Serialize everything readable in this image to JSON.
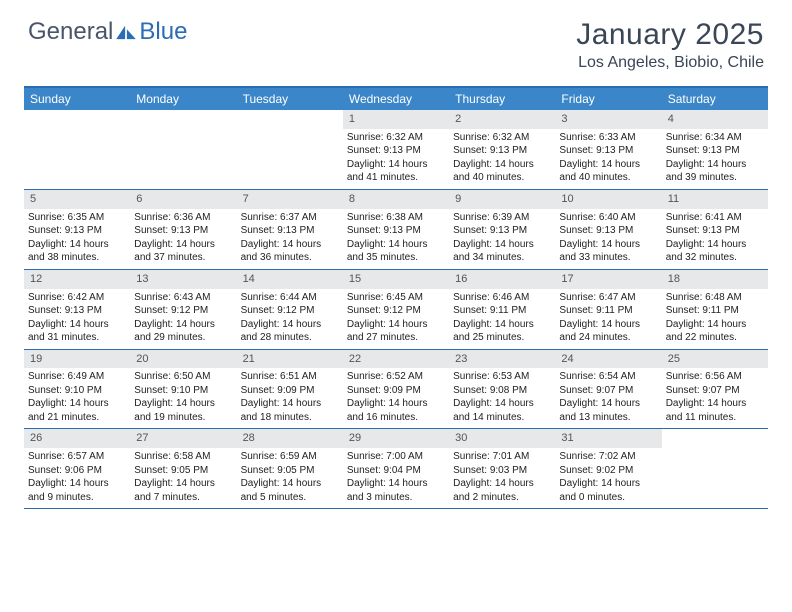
{
  "logo": {
    "part1": "General",
    "part2": "Blue"
  },
  "title": "January 2025",
  "location": "Los Angeles, Biobio, Chile",
  "colors": {
    "header_bar": "#3b86c8",
    "border": "#2a6db5",
    "daynum_bg": "#e6e8ea",
    "title_color": "#3a4556",
    "logo_gray": "#4a5568"
  },
  "day_names": [
    "Sunday",
    "Monday",
    "Tuesday",
    "Wednesday",
    "Thursday",
    "Friday",
    "Saturday"
  ],
  "weeks": [
    [
      {
        "empty": true
      },
      {
        "empty": true
      },
      {
        "empty": true
      },
      {
        "day": "1",
        "sunrise": "Sunrise: 6:32 AM",
        "sunset": "Sunset: 9:13 PM",
        "daylight1": "Daylight: 14 hours",
        "daylight2": "and 41 minutes."
      },
      {
        "day": "2",
        "sunrise": "Sunrise: 6:32 AM",
        "sunset": "Sunset: 9:13 PM",
        "daylight1": "Daylight: 14 hours",
        "daylight2": "and 40 minutes."
      },
      {
        "day": "3",
        "sunrise": "Sunrise: 6:33 AM",
        "sunset": "Sunset: 9:13 PM",
        "daylight1": "Daylight: 14 hours",
        "daylight2": "and 40 minutes."
      },
      {
        "day": "4",
        "sunrise": "Sunrise: 6:34 AM",
        "sunset": "Sunset: 9:13 PM",
        "daylight1": "Daylight: 14 hours",
        "daylight2": "and 39 minutes."
      }
    ],
    [
      {
        "day": "5",
        "sunrise": "Sunrise: 6:35 AM",
        "sunset": "Sunset: 9:13 PM",
        "daylight1": "Daylight: 14 hours",
        "daylight2": "and 38 minutes."
      },
      {
        "day": "6",
        "sunrise": "Sunrise: 6:36 AM",
        "sunset": "Sunset: 9:13 PM",
        "daylight1": "Daylight: 14 hours",
        "daylight2": "and 37 minutes."
      },
      {
        "day": "7",
        "sunrise": "Sunrise: 6:37 AM",
        "sunset": "Sunset: 9:13 PM",
        "daylight1": "Daylight: 14 hours",
        "daylight2": "and 36 minutes."
      },
      {
        "day": "8",
        "sunrise": "Sunrise: 6:38 AM",
        "sunset": "Sunset: 9:13 PM",
        "daylight1": "Daylight: 14 hours",
        "daylight2": "and 35 minutes."
      },
      {
        "day": "9",
        "sunrise": "Sunrise: 6:39 AM",
        "sunset": "Sunset: 9:13 PM",
        "daylight1": "Daylight: 14 hours",
        "daylight2": "and 34 minutes."
      },
      {
        "day": "10",
        "sunrise": "Sunrise: 6:40 AM",
        "sunset": "Sunset: 9:13 PM",
        "daylight1": "Daylight: 14 hours",
        "daylight2": "and 33 minutes."
      },
      {
        "day": "11",
        "sunrise": "Sunrise: 6:41 AM",
        "sunset": "Sunset: 9:13 PM",
        "daylight1": "Daylight: 14 hours",
        "daylight2": "and 32 minutes."
      }
    ],
    [
      {
        "day": "12",
        "sunrise": "Sunrise: 6:42 AM",
        "sunset": "Sunset: 9:13 PM",
        "daylight1": "Daylight: 14 hours",
        "daylight2": "and 31 minutes."
      },
      {
        "day": "13",
        "sunrise": "Sunrise: 6:43 AM",
        "sunset": "Sunset: 9:12 PM",
        "daylight1": "Daylight: 14 hours",
        "daylight2": "and 29 minutes."
      },
      {
        "day": "14",
        "sunrise": "Sunrise: 6:44 AM",
        "sunset": "Sunset: 9:12 PM",
        "daylight1": "Daylight: 14 hours",
        "daylight2": "and 28 minutes."
      },
      {
        "day": "15",
        "sunrise": "Sunrise: 6:45 AM",
        "sunset": "Sunset: 9:12 PM",
        "daylight1": "Daylight: 14 hours",
        "daylight2": "and 27 minutes."
      },
      {
        "day": "16",
        "sunrise": "Sunrise: 6:46 AM",
        "sunset": "Sunset: 9:11 PM",
        "daylight1": "Daylight: 14 hours",
        "daylight2": "and 25 minutes."
      },
      {
        "day": "17",
        "sunrise": "Sunrise: 6:47 AM",
        "sunset": "Sunset: 9:11 PM",
        "daylight1": "Daylight: 14 hours",
        "daylight2": "and 24 minutes."
      },
      {
        "day": "18",
        "sunrise": "Sunrise: 6:48 AM",
        "sunset": "Sunset: 9:11 PM",
        "daylight1": "Daylight: 14 hours",
        "daylight2": "and 22 minutes."
      }
    ],
    [
      {
        "day": "19",
        "sunrise": "Sunrise: 6:49 AM",
        "sunset": "Sunset: 9:10 PM",
        "daylight1": "Daylight: 14 hours",
        "daylight2": "and 21 minutes."
      },
      {
        "day": "20",
        "sunrise": "Sunrise: 6:50 AM",
        "sunset": "Sunset: 9:10 PM",
        "daylight1": "Daylight: 14 hours",
        "daylight2": "and 19 minutes."
      },
      {
        "day": "21",
        "sunrise": "Sunrise: 6:51 AM",
        "sunset": "Sunset: 9:09 PM",
        "daylight1": "Daylight: 14 hours",
        "daylight2": "and 18 minutes."
      },
      {
        "day": "22",
        "sunrise": "Sunrise: 6:52 AM",
        "sunset": "Sunset: 9:09 PM",
        "daylight1": "Daylight: 14 hours",
        "daylight2": "and 16 minutes."
      },
      {
        "day": "23",
        "sunrise": "Sunrise: 6:53 AM",
        "sunset": "Sunset: 9:08 PM",
        "daylight1": "Daylight: 14 hours",
        "daylight2": "and 14 minutes."
      },
      {
        "day": "24",
        "sunrise": "Sunrise: 6:54 AM",
        "sunset": "Sunset: 9:07 PM",
        "daylight1": "Daylight: 14 hours",
        "daylight2": "and 13 minutes."
      },
      {
        "day": "25",
        "sunrise": "Sunrise: 6:56 AM",
        "sunset": "Sunset: 9:07 PM",
        "daylight1": "Daylight: 14 hours",
        "daylight2": "and 11 minutes."
      }
    ],
    [
      {
        "day": "26",
        "sunrise": "Sunrise: 6:57 AM",
        "sunset": "Sunset: 9:06 PM",
        "daylight1": "Daylight: 14 hours",
        "daylight2": "and 9 minutes."
      },
      {
        "day": "27",
        "sunrise": "Sunrise: 6:58 AM",
        "sunset": "Sunset: 9:05 PM",
        "daylight1": "Daylight: 14 hours",
        "daylight2": "and 7 minutes."
      },
      {
        "day": "28",
        "sunrise": "Sunrise: 6:59 AM",
        "sunset": "Sunset: 9:05 PM",
        "daylight1": "Daylight: 14 hours",
        "daylight2": "and 5 minutes."
      },
      {
        "day": "29",
        "sunrise": "Sunrise: 7:00 AM",
        "sunset": "Sunset: 9:04 PM",
        "daylight1": "Daylight: 14 hours",
        "daylight2": "and 3 minutes."
      },
      {
        "day": "30",
        "sunrise": "Sunrise: 7:01 AM",
        "sunset": "Sunset: 9:03 PM",
        "daylight1": "Daylight: 14 hours",
        "daylight2": "and 2 minutes."
      },
      {
        "day": "31",
        "sunrise": "Sunrise: 7:02 AM",
        "sunset": "Sunset: 9:02 PM",
        "daylight1": "Daylight: 14 hours",
        "daylight2": "and 0 minutes."
      },
      {
        "empty": true
      }
    ]
  ]
}
